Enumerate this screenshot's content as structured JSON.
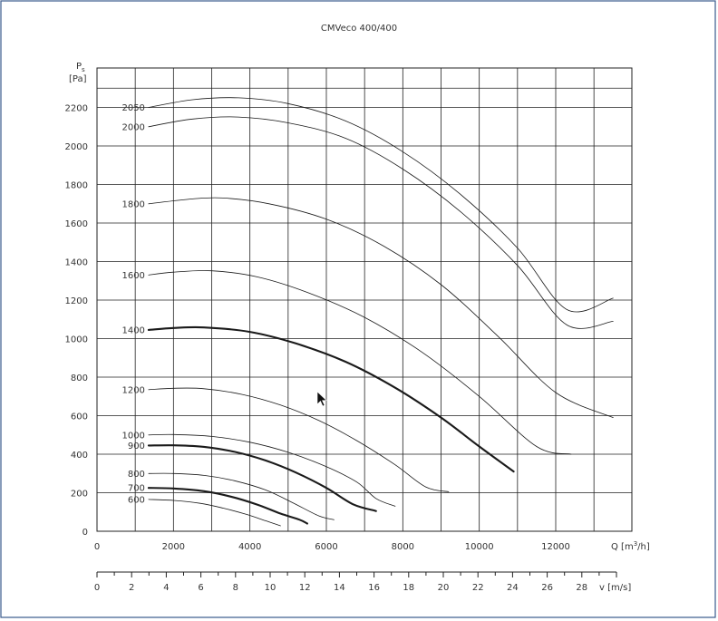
{
  "chart_data": {
    "type": "line",
    "title": "CMVeco 400/400",
    "ylabel_main": "P",
    "ylabel_sub": "s",
    "ylabel_unit": "[Pa]",
    "xlabel": "Q [m³/h]",
    "xlabel_prefix": "Q [m",
    "xlabel_sup": "3",
    "xlabel_suffix": "/h]",
    "x2label": "v [m/s]",
    "xlim": [
      0,
      13500
    ],
    "ylim": [
      0,
      2200
    ],
    "x_ticks": [
      "0",
      "2000",
      "4000",
      "6000",
      "8000",
      "10000",
      "12000"
    ],
    "y_ticks": [
      "0",
      "200",
      "400",
      "600",
      "800",
      "1000",
      "1200",
      "1400",
      "1600",
      "1800",
      "2000",
      "2200"
    ],
    "x2_ticks": [
      "0",
      "2",
      "4",
      "6",
      "8",
      "10",
      "12",
      "14",
      "16",
      "18",
      "20",
      "22",
      "24",
      "26",
      "28"
    ],
    "grid": true,
    "colors": {
      "curve": "#1a1a1a",
      "grid": "#222222",
      "frame": "#3a5a8c"
    },
    "series": [
      {
        "name": "2050",
        "bold": false,
        "points": [
          [
            1350,
            2200
          ],
          [
            2500,
            2240
          ],
          [
            3700,
            2250
          ],
          [
            5000,
            2220
          ],
          [
            6500,
            2130
          ],
          [
            8000,
            1970
          ],
          [
            9500,
            1750
          ],
          [
            11000,
            1470
          ],
          [
            12300,
            1150
          ],
          [
            13500,
            1210
          ]
        ]
      },
      {
        "name": "2000",
        "bold": false,
        "points": [
          [
            1350,
            2100
          ],
          [
            2500,
            2140
          ],
          [
            3700,
            2150
          ],
          [
            5000,
            2120
          ],
          [
            6500,
            2040
          ],
          [
            8000,
            1880
          ],
          [
            9500,
            1660
          ],
          [
            11000,
            1380
          ],
          [
            12300,
            1070
          ],
          [
            13500,
            1090
          ]
        ]
      },
      {
        "name": "1800",
        "bold": false,
        "points": [
          [
            1350,
            1700
          ],
          [
            2500,
            1725
          ],
          [
            3300,
            1730
          ],
          [
            4500,
            1700
          ],
          [
            6000,
            1620
          ],
          [
            7500,
            1480
          ],
          [
            9000,
            1280
          ],
          [
            10500,
            1010
          ],
          [
            12000,
            720
          ],
          [
            13500,
            590
          ]
        ]
      },
      {
        "name": "1600",
        "bold": false,
        "points": [
          [
            1350,
            1330
          ],
          [
            2000,
            1345
          ],
          [
            3000,
            1352
          ],
          [
            4200,
            1320
          ],
          [
            5500,
            1240
          ],
          [
            7000,
            1110
          ],
          [
            8500,
            930
          ],
          [
            10000,
            700
          ],
          [
            11500,
            440
          ],
          [
            12400,
            400
          ]
        ]
      },
      {
        "name": "1400",
        "bold": true,
        "points": [
          [
            1350,
            1045
          ],
          [
            2000,
            1055
          ],
          [
            2800,
            1058
          ],
          [
            4000,
            1035
          ],
          [
            5200,
            975
          ],
          [
            6500,
            880
          ],
          [
            7800,
            745
          ],
          [
            9000,
            590
          ],
          [
            10000,
            440
          ],
          [
            10900,
            310
          ]
        ]
      },
      {
        "name": "1200",
        "bold": false,
        "points": [
          [
            1350,
            735
          ],
          [
            2000,
            742
          ],
          [
            2800,
            740
          ],
          [
            3800,
            710
          ],
          [
            4800,
            655
          ],
          [
            5800,
            575
          ],
          [
            6800,
            470
          ],
          [
            7800,
            345
          ],
          [
            8600,
            230
          ],
          [
            9200,
            205
          ]
        ]
      },
      {
        "name": "1000",
        "bold": false,
        "points": [
          [
            1350,
            500
          ],
          [
            2000,
            502
          ],
          [
            3000,
            492
          ],
          [
            4000,
            462
          ],
          [
            5000,
            410
          ],
          [
            6000,
            335
          ],
          [
            6800,
            255
          ],
          [
            7300,
            170
          ],
          [
            7800,
            130
          ]
        ]
      },
      {
        "name": "900",
        "bold": true,
        "points": [
          [
            1350,
            445
          ],
          [
            2000,
            446
          ],
          [
            2800,
            438
          ],
          [
            3600,
            412
          ],
          [
            4400,
            368
          ],
          [
            5200,
            305
          ],
          [
            6000,
            225
          ],
          [
            6700,
            140
          ],
          [
            7300,
            105
          ]
        ]
      },
      {
        "name": "800",
        "bold": false,
        "points": [
          [
            1350,
            300
          ],
          [
            2000,
            300
          ],
          [
            2800,
            290
          ],
          [
            3600,
            262
          ],
          [
            4400,
            215
          ],
          [
            5100,
            150
          ],
          [
            5800,
            80
          ],
          [
            6200,
            60
          ]
        ]
      },
      {
        "name": "700",
        "bold": true,
        "points": [
          [
            1350,
            225
          ],
          [
            2000,
            222
          ],
          [
            2800,
            208
          ],
          [
            3500,
            180
          ],
          [
            4200,
            138
          ],
          [
            4800,
            92
          ],
          [
            5300,
            60
          ],
          [
            5500,
            40
          ]
        ]
      },
      {
        "name": "600",
        "bold": false,
        "points": [
          [
            1350,
            165
          ],
          [
            2000,
            160
          ],
          [
            2700,
            145
          ],
          [
            3300,
            120
          ],
          [
            3900,
            88
          ],
          [
            4400,
            55
          ],
          [
            4800,
            28
          ]
        ]
      }
    ]
  }
}
